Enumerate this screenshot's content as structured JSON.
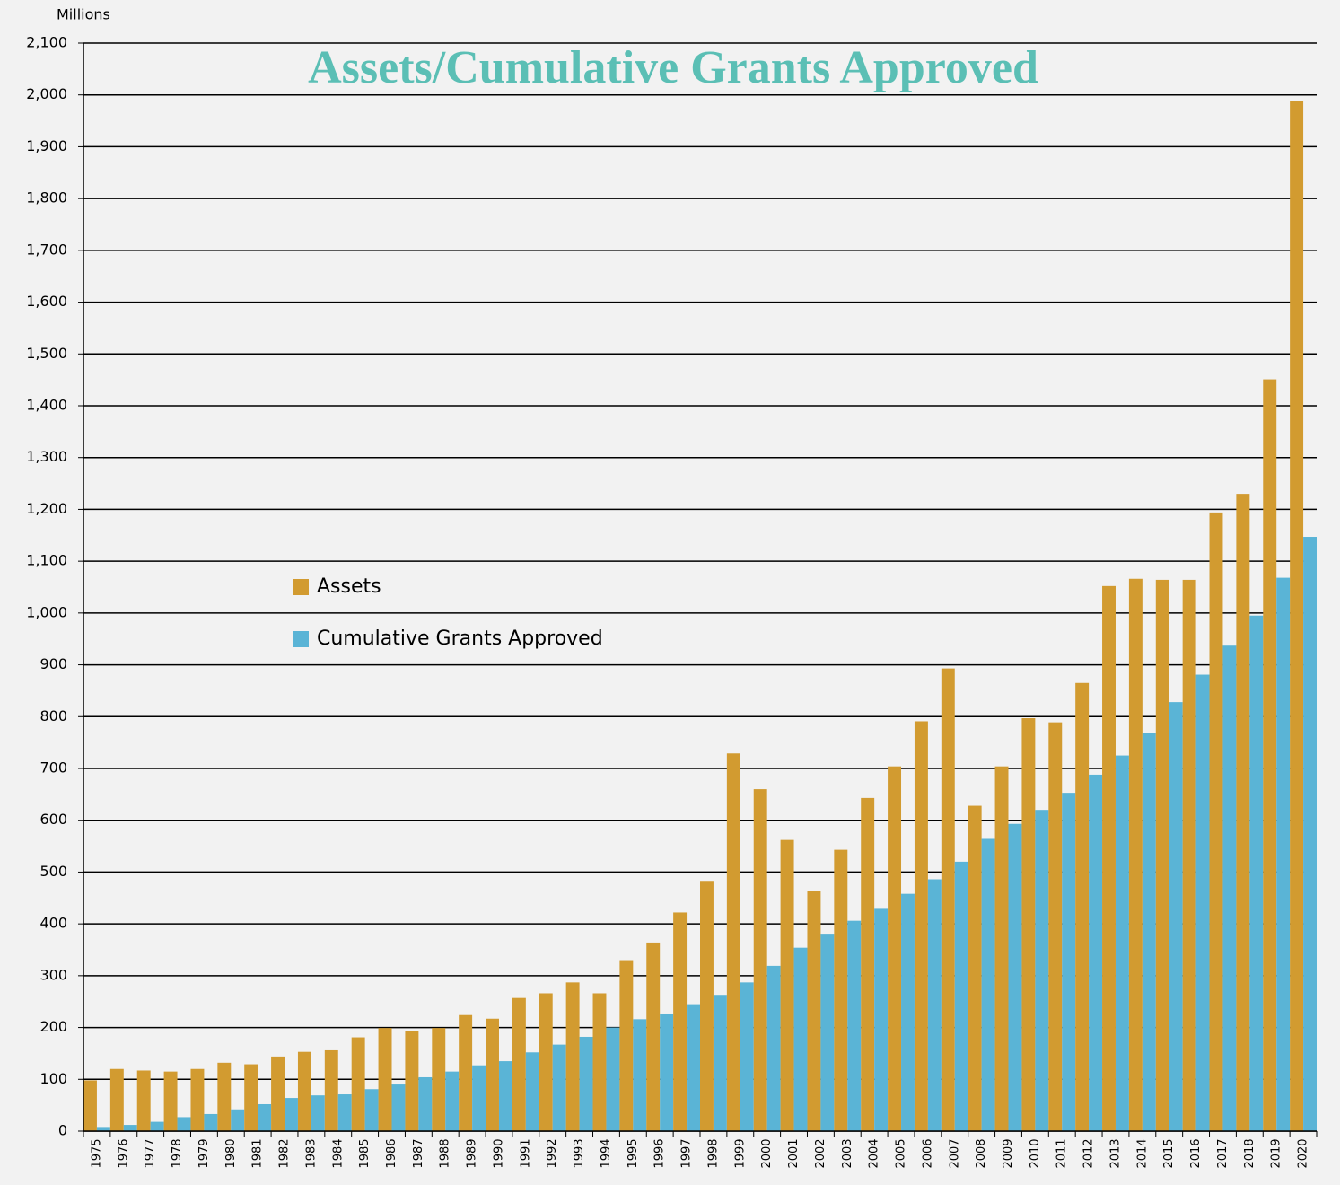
{
  "chart_data": {
    "type": "bar",
    "title": "Assets/Cumulative Grants Approved",
    "y_label": "Millions",
    "categories": [
      "1975",
      "1976",
      "1977",
      "1978",
      "1979",
      "1980",
      "1981",
      "1982",
      "1983",
      "1984",
      "1985",
      "1986",
      "1987",
      "1988",
      "1989",
      "1990",
      "1991",
      "1992",
      "1993",
      "1994",
      "1995",
      "1996",
      "1997",
      "1998",
      "1999",
      "2000",
      "2001",
      "2002",
      "2003",
      "2004",
      "2005",
      "2006",
      "2007",
      "2008",
      "2009",
      "2010",
      "2011",
      "2012",
      "2013",
      "2014",
      "2015",
      "2016",
      "2017",
      "2018",
      "2019",
      "2020"
    ],
    "series": [
      {
        "name": "Assets",
        "color": "#d29b30",
        "values": [
          98,
          120,
          117,
          115,
          120,
          132,
          129,
          144,
          153,
          156,
          181,
          199,
          193,
          199,
          224,
          217,
          257,
          266,
          287,
          266,
          330,
          364,
          422,
          483,
          729,
          660,
          562,
          463,
          543,
          643,
          704,
          791,
          893,
          628,
          704,
          797,
          789,
          865,
          1052,
          1066,
          1064,
          1064,
          1194,
          1230,
          1451,
          1989
        ]
      },
      {
        "name": "Cumulative Grants Approved",
        "color": "#5ab4d6",
        "values": [
          8,
          12,
          18,
          27,
          33,
          42,
          52,
          64,
          69,
          71,
          81,
          90,
          104,
          115,
          127,
          135,
          152,
          167,
          182,
          200,
          216,
          227,
          245,
          263,
          287,
          319,
          354,
          381,
          406,
          429,
          458,
          486,
          520,
          564,
          593,
          620,
          653,
          688,
          725,
          769,
          828,
          881,
          937,
          995,
          1068,
          1147
        ]
      }
    ],
    "ylim": [
      0,
      2100
    ],
    "yticks": [
      0,
      100,
      200,
      300,
      400,
      500,
      600,
      700,
      800,
      900,
      {
        "value": 1000,
        "label": "1,000"
      },
      {
        "value": 1100,
        "label": "1,100"
      },
      {
        "value": 1200,
        "label": "1,200"
      },
      {
        "value": 1300,
        "label": "1,300"
      },
      {
        "value": 1400,
        "label": "1,400"
      },
      {
        "value": 1500,
        "label": "1,500"
      },
      {
        "value": 1600,
        "label": "1,600"
      },
      {
        "value": 1700,
        "label": "1,700"
      },
      {
        "value": 1800,
        "label": "1,800"
      },
      {
        "value": 1900,
        "label": "1,900"
      },
      {
        "value": 2000,
        "label": "2,000"
      },
      {
        "value": 2100,
        "label": "2,100"
      }
    ],
    "grid": true,
    "legend": "left"
  }
}
